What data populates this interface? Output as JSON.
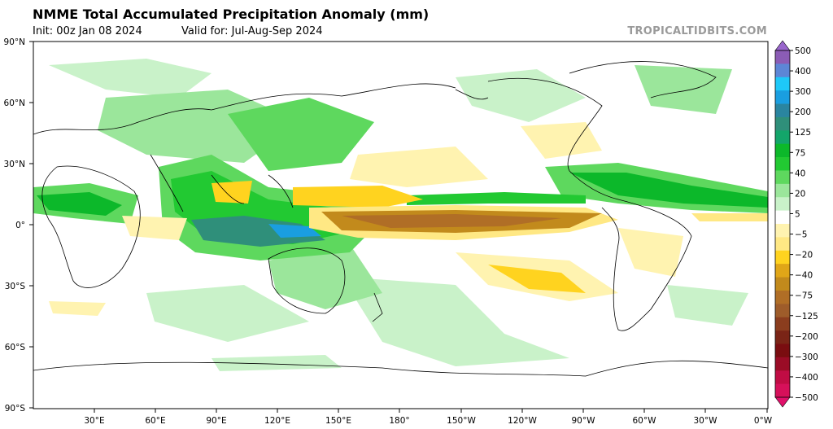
{
  "header": {
    "title": "NMME Total Accumulated Precipitation Anomaly (mm)",
    "init": "Init: 00z Jan 08 2024",
    "valid": "Valid for: Jul-Aug-Sep 2024",
    "credit": "TROPICALTIDBITS.COM"
  },
  "map": {
    "lat_ticks": [
      "90°N",
      "60°N",
      "30°N",
      "0°",
      "30°S",
      "60°S",
      "90°S"
    ],
    "lon_ticks": [
      "30°E",
      "60°E",
      "90°E",
      "120°E",
      "150°E",
      "180°",
      "150°W",
      "120°W",
      "90°W",
      "60°W",
      "30°W",
      "0°W"
    ]
  },
  "colorbar": {
    "labels": [
      "500",
      "400",
      "300",
      "200",
      "125",
      "75",
      "40",
      "20",
      "5",
      "−5",
      "−20",
      "−40",
      "−75",
      "−125",
      "−200",
      "−300",
      "−400",
      "−500"
    ],
    "colors": [
      "#8b5cb5",
      "#5d86d6",
      "#1ec8f8",
      "#1a9ee0",
      "#2a85a0",
      "#2f8f7a",
      "#13a56a",
      "#0cb82a",
      "#22c932",
      "#5ed85e",
      "#9be69b",
      "#c9f2c9",
      "#ffffff",
      "#fff3b0",
      "#ffe884",
      "#ffd31f",
      "#e0a618",
      "#c28a1c",
      "#b06e26",
      "#9e5c2a",
      "#8b3d1e",
      "#7a2416",
      "#7a0d10",
      "#9a0c26",
      "#c00c44",
      "#d6105a"
    ]
  }
}
